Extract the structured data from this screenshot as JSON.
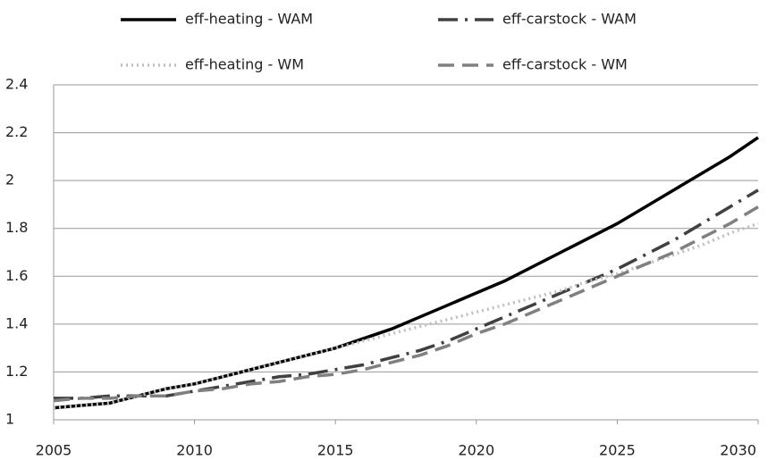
{
  "chart_data": {
    "type": "line",
    "x": [
      2005,
      2006,
      2007,
      2008,
      2009,
      2010,
      2011,
      2012,
      2013,
      2014,
      2015,
      2016,
      2017,
      2018,
      2019,
      2020,
      2021,
      2022,
      2023,
      2024,
      2025,
      2026,
      2027,
      2028,
      2029,
      2030
    ],
    "series": [
      {
        "name": "eff-heating - WAM",
        "color": "#000000",
        "style": "solid",
        "values": [
          1.05,
          1.06,
          1.07,
          1.1,
          1.13,
          1.15,
          1.18,
          1.21,
          1.24,
          1.27,
          1.3,
          1.34,
          1.38,
          1.43,
          1.48,
          1.53,
          1.58,
          1.64,
          1.7,
          1.76,
          1.82,
          1.89,
          1.96,
          2.03,
          2.1,
          2.18
        ]
      },
      {
        "name": "eff-carstock - WAM",
        "color": "#404040",
        "style": "dashdot",
        "values": [
          1.09,
          1.09,
          1.1,
          1.1,
          1.1,
          1.12,
          1.14,
          1.16,
          1.18,
          1.19,
          1.21,
          1.23,
          1.26,
          1.29,
          1.33,
          1.38,
          1.43,
          1.48,
          1.53,
          1.58,
          1.63,
          1.69,
          1.75,
          1.82,
          1.89,
          1.96
        ]
      },
      {
        "name": "eff-heating - WM",
        "color": "#bfbfbf",
        "style": "dotted",
        "values": [
          1.05,
          1.06,
          1.07,
          1.1,
          1.13,
          1.15,
          1.18,
          1.21,
          1.24,
          1.27,
          1.3,
          1.33,
          1.36,
          1.39,
          1.42,
          1.45,
          1.48,
          1.51,
          1.54,
          1.58,
          1.61,
          1.65,
          1.69,
          1.73,
          1.78,
          1.82
        ]
      },
      {
        "name": "eff-carstock - WM",
        "color": "#808080",
        "style": "dashed",
        "values": [
          1.08,
          1.09,
          1.09,
          1.1,
          1.1,
          1.12,
          1.13,
          1.15,
          1.16,
          1.18,
          1.19,
          1.21,
          1.24,
          1.27,
          1.31,
          1.36,
          1.4,
          1.45,
          1.5,
          1.55,
          1.6,
          1.65,
          1.7,
          1.76,
          1.82,
          1.89
        ]
      }
    ],
    "xlim": [
      2005,
      2030
    ],
    "xticks": [
      2005,
      2010,
      2015,
      2020,
      2025,
      2030
    ],
    "ylim": [
      1,
      2.4
    ],
    "yticks": [
      1,
      1.2,
      1.4,
      1.6,
      1.8,
      2,
      2.2,
      2.4
    ],
    "grid": true
  }
}
